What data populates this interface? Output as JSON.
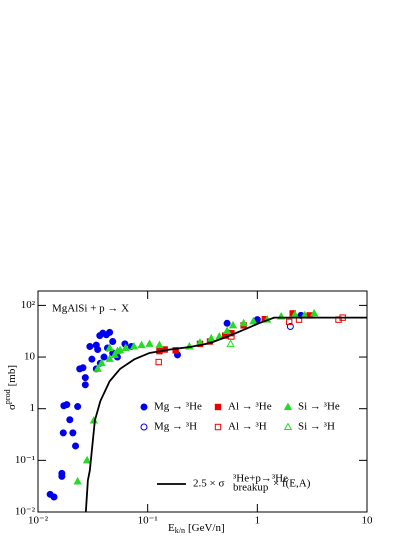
{
  "chart_data": {
    "type": "scatter",
    "annotation": "MgAlSi + p → X",
    "xlabel": {
      "symbol": "E",
      "sub": "k/n",
      "unit": "[GeV/n]"
    },
    "ylabel": {
      "symbol": "σ",
      "sup": "prod",
      "unit": "[mb]"
    },
    "xlog": true,
    "ylog": true,
    "xlim": [
      0.01,
      10
    ],
    "ylim": [
      0.01,
      190
    ],
    "xticks": [
      {
        "value": 0.01,
        "label": "10⁻²"
      },
      {
        "value": 0.1,
        "label": "10⁻¹"
      },
      1,
      10
    ],
    "yticks": [
      {
        "value": 0.01,
        "label": "10⁻²"
      },
      {
        "value": 0.1,
        "label": "10⁻¹"
      },
      1,
      10,
      {
        "value": 100,
        "label": "10²"
      }
    ],
    "series": [
      {
        "name": "Mg → ³He",
        "color": "#0000ee",
        "marker": "circle",
        "filled": true,
        "x": [
          0.0129,
          0.014,
          0.0165,
          0.0165,
          0.017,
          0.0172,
          0.0183,
          0.0195,
          0.0208,
          0.022,
          0.023,
          0.024,
          0.0257,
          0.027,
          0.027,
          0.0297,
          0.031,
          0.034,
          0.035,
          0.0366,
          0.039,
          0.042,
          0.045,
          0.034,
          0.037,
          0.04,
          0.043,
          0.048,
          0.053,
          0.062,
          0.071,
          0.048,
          0.187,
          0.53,
          1.0,
          2.5
        ],
        "values": [
          0.022,
          0.0195,
          0.056,
          0.049,
          0.34,
          1.14,
          1.2,
          0.61,
          0.34,
          0.19,
          1.1,
          5.9,
          6.2,
          2.9,
          4.0,
          16,
          9.1,
          17,
          14,
          26,
          29,
          27,
          30,
          5.9,
          7.6,
          10,
          15,
          12,
          10,
          18,
          16,
          20,
          11,
          45,
          53,
          64
        ]
      },
      {
        "name": "Mg → ³H",
        "color": "#0000ee",
        "marker": "circle",
        "filled": false,
        "x": [
          2.0
        ],
        "values": [
          39
        ]
      },
      {
        "name": "Al → ³He",
        "color": "#ee0000",
        "marker": "square",
        "filled": true,
        "x": [
          0.128,
          0.143,
          0.18,
          0.3,
          0.37,
          0.51,
          0.58,
          0.75,
          1.17,
          2.1,
          3.0
        ],
        "values": [
          13,
          14,
          13.5,
          18,
          20,
          26,
          29,
          41,
          54,
          70,
          64
        ]
      },
      {
        "name": "Al → ³H",
        "color": "#ee0000",
        "marker": "square",
        "filled": false,
        "x": [
          0.126,
          0.58,
          1.95,
          2.4,
          5.5,
          6.0
        ],
        "values": [
          8.0,
          25,
          48,
          53,
          53,
          58
        ]
      },
      {
        "name": "Si → ³He",
        "color": "#22dd22",
        "marker": "triangle",
        "filled": true,
        "x": [
          0.023,
          0.028,
          0.0323,
          0.035,
          0.038,
          0.045,
          0.05,
          0.056,
          0.063,
          0.075,
          0.088,
          0.104,
          0.128,
          0.24,
          0.3,
          0.38,
          0.45,
          0.53,
          0.6,
          0.75,
          0.92,
          1.23,
          1.65,
          2.2,
          2.7,
          3.3,
          0.045,
          0.053
        ],
        "values": [
          0.039,
          0.1,
          0.59,
          5.9,
          7.6,
          9.2,
          11,
          13.5,
          15,
          16,
          17,
          18,
          17,
          16,
          19,
          23,
          25,
          32,
          41,
          45,
          49,
          53,
          61,
          66,
          64,
          70,
          15,
          13
        ]
      },
      {
        "name": "Si → ³H",
        "color": "#22dd22",
        "marker": "triangle",
        "filled": false,
        "x": [
          0.57
        ],
        "values": [
          18
        ]
      },
      {
        "name": {
          "pre": "2.5 × σ",
          "sup": "³He+p→³He",
          "sub": "breakup",
          "post": "× f(E,A)"
        },
        "color": "#000000",
        "mode": "line",
        "x": [
          0.0273,
          0.0285,
          0.0297,
          0.033,
          0.037,
          0.045,
          0.056,
          0.076,
          0.104,
          0.16,
          0.24,
          0.37,
          0.56,
          0.76,
          1.03,
          1.42,
          1.94,
          10
        ],
        "values": [
          0.01,
          0.041,
          0.064,
          0.59,
          1.4,
          3.4,
          5.9,
          9.1,
          12,
          14,
          15.6,
          18.6,
          26,
          34,
          45,
          58,
          58,
          58
        ]
      }
    ]
  }
}
